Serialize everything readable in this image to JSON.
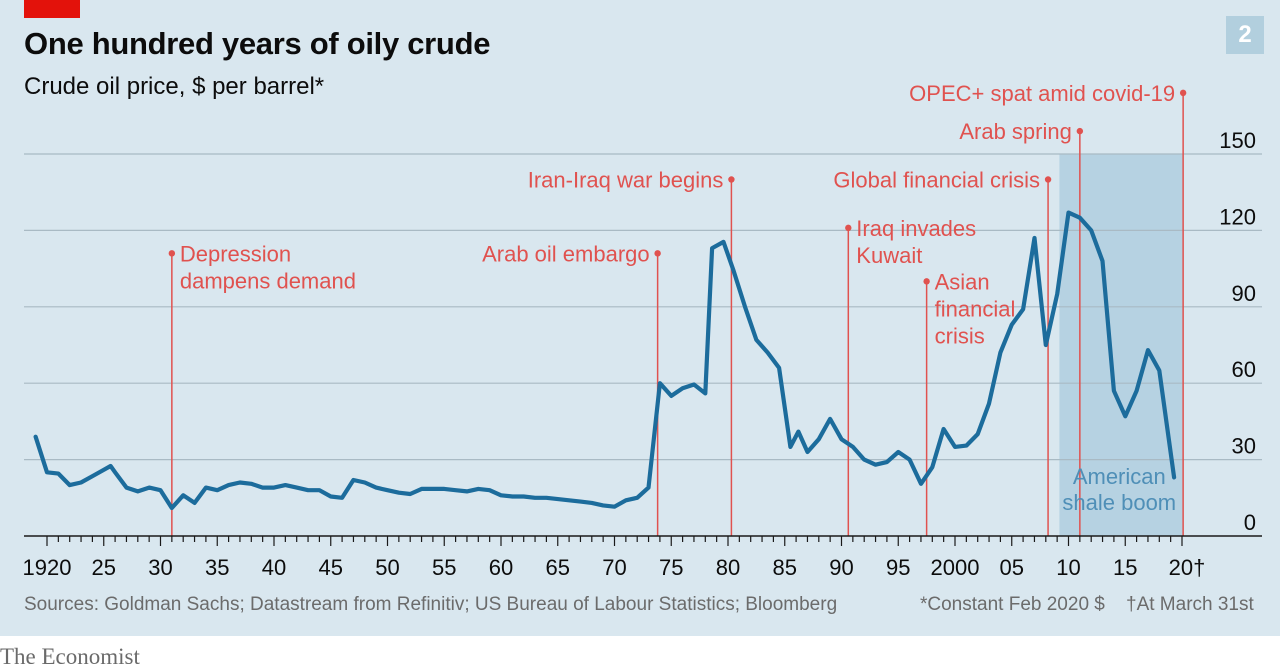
{
  "header": {
    "title": "One hundred years of oily crude",
    "subtitle": "Crude oil price, $ per barrel*",
    "chart_number": "2"
  },
  "footer": {
    "sources": "Sources: Goldman Sachs; Datastream from Refinitiv; US Bureau of Labour Statistics; Bloomberg",
    "footnote_price": "*Constant Feb 2020 $",
    "footnote_date": "†At March 31st",
    "logo": "The Economist"
  },
  "colors": {
    "background": "#d9e7ef",
    "line": "#1c6c9c",
    "annotation": "#e0524f",
    "shade": "#b6d2e2",
    "shade_label": "#4f8fb7",
    "grid": "#a9bac4"
  },
  "chart_data": {
    "type": "line",
    "title": "One hundred years of oily crude",
    "ylabel": "Crude oil price, $ per barrel*",
    "xlim": [
      1919,
      2020.4
    ],
    "ylim": [
      0,
      150
    ],
    "y_ticks": [
      0,
      30,
      60,
      90,
      120,
      150
    ],
    "x_ticks": [
      {
        "value": 1920,
        "label": "1920"
      },
      {
        "value": 1925,
        "label": "25"
      },
      {
        "value": 1930,
        "label": "30"
      },
      {
        "value": 1935,
        "label": "35"
      },
      {
        "value": 1940,
        "label": "40"
      },
      {
        "value": 1945,
        "label": "45"
      },
      {
        "value": 1950,
        "label": "50"
      },
      {
        "value": 1955,
        "label": "55"
      },
      {
        "value": 1960,
        "label": "60"
      },
      {
        "value": 1965,
        "label": "65"
      },
      {
        "value": 1970,
        "label": "70"
      },
      {
        "value": 1975,
        "label": "75"
      },
      {
        "value": 1980,
        "label": "80"
      },
      {
        "value": 1985,
        "label": "85"
      },
      {
        "value": 1990,
        "label": "90"
      },
      {
        "value": 1995,
        "label": "95"
      },
      {
        "value": 2000,
        "label": "2000"
      },
      {
        "value": 2005,
        "label": "05"
      },
      {
        "value": 2010,
        "label": "10"
      },
      {
        "value": 2015,
        "label": "15"
      },
      {
        "value": 2020,
        "label": "20†"
      }
    ],
    "grid": true,
    "series": [
      {
        "points": [
          [
            1919,
            39
          ],
          [
            1920,
            25
          ],
          [
            1921,
            24.5
          ],
          [
            1922,
            20
          ],
          [
            1923,
            21
          ],
          [
            1924,
            23.5
          ],
          [
            1925,
            26
          ],
          [
            1925.6,
            27.5
          ],
          [
            1926,
            25
          ],
          [
            1927,
            19
          ],
          [
            1928,
            17.5
          ],
          [
            1929,
            19
          ],
          [
            1930,
            18
          ],
          [
            1931,
            11
          ],
          [
            1932,
            16
          ],
          [
            1933,
            13
          ],
          [
            1934,
            19
          ],
          [
            1935,
            18
          ],
          [
            1936,
            20
          ],
          [
            1937,
            21
          ],
          [
            1938,
            20.5
          ],
          [
            1939,
            19
          ],
          [
            1940,
            19
          ],
          [
            1941,
            20
          ],
          [
            1942,
            19
          ],
          [
            1943,
            18
          ],
          [
            1944,
            18
          ],
          [
            1945,
            15.5
          ],
          [
            1946,
            15
          ],
          [
            1947,
            22
          ],
          [
            1948,
            21
          ],
          [
            1949,
            19
          ],
          [
            1950,
            18
          ],
          [
            1951,
            17
          ],
          [
            1952,
            16.5
          ],
          [
            1953,
            18.5
          ],
          [
            1954,
            18.5
          ],
          [
            1955,
            18.5
          ],
          [
            1956,
            18
          ],
          [
            1957,
            17.5
          ],
          [
            1958,
            18.5
          ],
          [
            1959,
            18
          ],
          [
            1960,
            16
          ],
          [
            1961,
            15.5
          ],
          [
            1962,
            15.5
          ],
          [
            1963,
            15
          ],
          [
            1964,
            15
          ],
          [
            1965,
            14.5
          ],
          [
            1966,
            14
          ],
          [
            1967,
            13.5
          ],
          [
            1968,
            13
          ],
          [
            1969,
            12
          ],
          [
            1970,
            11.5
          ],
          [
            1971,
            14
          ],
          [
            1972,
            15
          ],
          [
            1973,
            19
          ],
          [
            1974,
            60
          ],
          [
            1975,
            55
          ],
          [
            1976,
            58
          ],
          [
            1977,
            59.5
          ],
          [
            1978,
            56
          ],
          [
            1978.6,
            113
          ],
          [
            1979.6,
            115.5
          ],
          [
            1980.5,
            104
          ],
          [
            1981.5,
            90
          ],
          [
            1982.5,
            77
          ],
          [
            1983.5,
            72
          ],
          [
            1984.5,
            66
          ],
          [
            1985.5,
            35
          ],
          [
            1986.2,
            41
          ],
          [
            1987,
            33
          ],
          [
            1988,
            38
          ],
          [
            1989,
            46
          ],
          [
            1990,
            38
          ],
          [
            1991,
            35
          ],
          [
            1992,
            30
          ],
          [
            1993,
            28
          ],
          [
            1994,
            29
          ],
          [
            1995,
            33
          ],
          [
            1996,
            30
          ],
          [
            1997,
            20.5
          ],
          [
            1998,
            27
          ],
          [
            1999,
            42
          ],
          [
            2000,
            35
          ],
          [
            2001,
            35.5
          ],
          [
            2002,
            40
          ],
          [
            2003,
            52
          ],
          [
            2004,
            72
          ],
          [
            2005,
            83
          ],
          [
            2006,
            89
          ],
          [
            2007,
            117
          ],
          [
            2008,
            75
          ],
          [
            2009,
            95
          ],
          [
            2010,
            127
          ],
          [
            2011,
            125
          ],
          [
            2012,
            120
          ],
          [
            2013,
            108
          ],
          [
            2014,
            57
          ],
          [
            2015,
            47
          ],
          [
            2016,
            57
          ],
          [
            2017,
            73
          ],
          [
            2018,
            65
          ],
          [
            2019.3,
            23
          ]
        ]
      }
    ],
    "annotations": [
      {
        "x": 1931,
        "y_label": 111,
        "lines": [
          "Depression",
          "dampens demand"
        ],
        "side": "right"
      },
      {
        "x": 1973.8,
        "y_label": 111,
        "lines": [
          "Arab oil embargo"
        ],
        "side": "left"
      },
      {
        "x": 1980.3,
        "y_label": 140,
        "lines": [
          "Iran-Iraq war begins"
        ],
        "side": "left"
      },
      {
        "x": 1990.6,
        "y_label": 121,
        "lines": [
          "Iraq invades",
          "Kuwait"
        ],
        "side": "right"
      },
      {
        "x": 1997.5,
        "y_label": 100,
        "lines": [
          "Asian",
          "financial",
          "crisis"
        ],
        "side": "right"
      },
      {
        "x": 2008.2,
        "y_label": 140,
        "lines": [
          "Global financial crisis"
        ],
        "side": "left"
      },
      {
        "x": 2011,
        "y_label": 159,
        "lines": [
          "Arab spring"
        ],
        "side": "left"
      },
      {
        "x": 2020.1,
        "y_label": 174,
        "lines": [
          "OPEC+ spat amid covid-19"
        ],
        "side": "left"
      }
    ],
    "shaded_region": {
      "x_start": 2009.2,
      "x_end": 2020.1,
      "label_lines": [
        "American",
        "shale boom"
      ]
    }
  }
}
